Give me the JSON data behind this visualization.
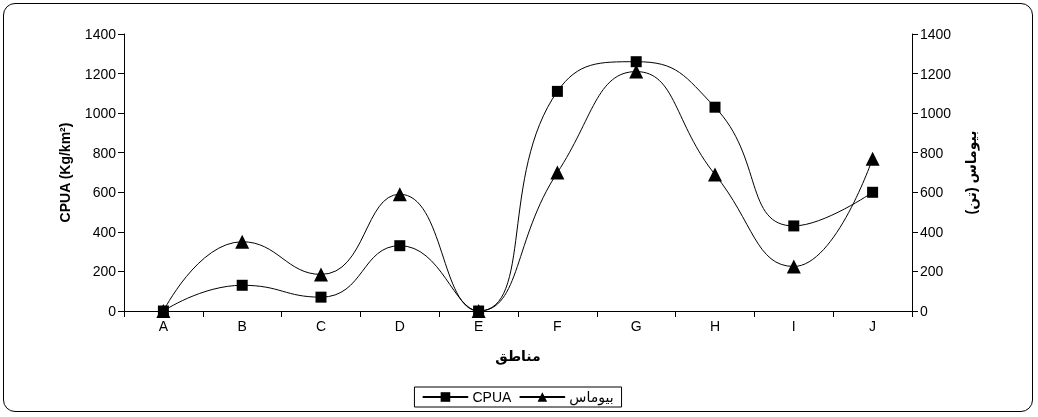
{
  "chart_data": {
    "type": "line",
    "xlabel": "مناطق",
    "ylabel": "CPUA (Kg/km²)",
    "y2label": "بیوماس (تن)",
    "categories": [
      "A",
      "B",
      "C",
      "D",
      "E",
      "F",
      "G",
      "H",
      "I",
      "J"
    ],
    "series": [
      {
        "name": "CPUA",
        "color": "#000000",
        "marker": "square",
        "values": [
          0,
          130,
          70,
          330,
          0,
          1110,
          1260,
          1030,
          430,
          600
        ]
      },
      {
        "name": "بیوماس",
        "color": "#000000",
        "marker": "triangle",
        "axis": "y2",
        "values": [
          0,
          350,
          185,
          590,
          0,
          700,
          1210,
          690,
          225,
          770
        ]
      }
    ],
    "ylim": [
      0,
      1400
    ],
    "yticks": [
      0,
      200,
      400,
      600,
      800,
      1000,
      1200,
      1400
    ],
    "y2lim": [
      0,
      1400
    ],
    "y2ticks": [
      0,
      200,
      400,
      600,
      800,
      1000,
      1200,
      1400
    ],
    "grid": false,
    "legend": "bottom",
    "line_style": "solid"
  }
}
